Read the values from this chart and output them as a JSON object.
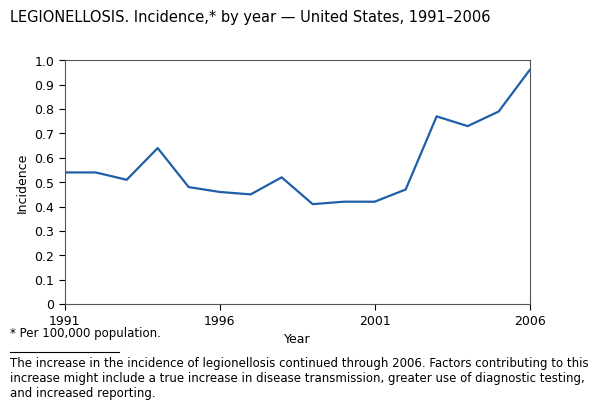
{
  "title": "LEGIONELLOSIS. Incidence,* by year — United States, 1991–2006",
  "xlabel": "Year",
  "ylabel": "Incidence",
  "years": [
    1991,
    1992,
    1993,
    1994,
    1995,
    1996,
    1997,
    1998,
    1999,
    2000,
    2001,
    2002,
    2003,
    2004,
    2005,
    2006
  ],
  "values": [
    0.54,
    0.54,
    0.51,
    0.64,
    0.48,
    0.46,
    0.45,
    0.52,
    0.41,
    0.42,
    0.42,
    0.47,
    0.77,
    0.73,
    0.79,
    0.96
  ],
  "line_color": "#1F5EA8",
  "line_width": 1.6,
  "ylim": [
    0,
    1.0
  ],
  "yticks": [
    0,
    0.1,
    0.2,
    0.3,
    0.4,
    0.5,
    0.6,
    0.7,
    0.8,
    0.9,
    1.0
  ],
  "xticks": [
    1991,
    1996,
    2001,
    2006
  ],
  "footnote_star": "* Per 100,000 population.",
  "footnote_body": "The increase in the incidence of legionellosis continued through 2006. Factors contributing to this\nincrease might include a true increase in disease transmission, greater use of diagnostic testing,\nand increased reporting.",
  "background_color": "#ffffff",
  "title_fontsize": 10.5,
  "axis_label_fontsize": 9,
  "tick_fontsize": 9,
  "footnote_fontsize": 8.5
}
